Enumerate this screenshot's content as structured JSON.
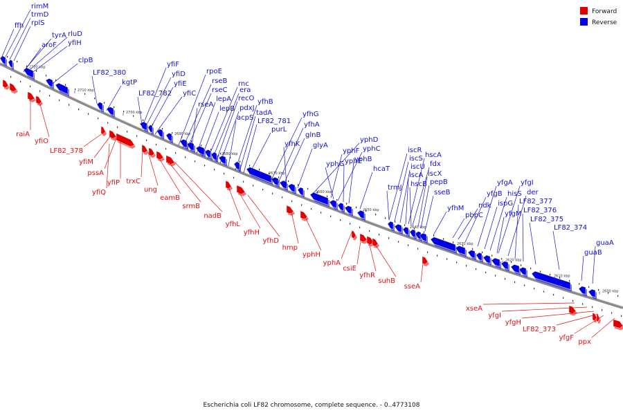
{
  "caption": "Escherichia coli LF82 chromosome, complete sequence. - 0..4773108",
  "legend": [
    {
      "label": "Forward",
      "color": "#e00000"
    },
    {
      "label": "Reverse",
      "color": "#0000e0"
    }
  ],
  "colors": {
    "forward": "#e00000",
    "reverse": "#0000e0",
    "backbone": "#999999"
  },
  "ticks": [
    "2720 kbp",
    "2710 kbp",
    "2700 kbp",
    "2690 kbp",
    "2680 kbp",
    "2670 kbp",
    "2660 kbp",
    "2650 kbp",
    "2640 kbp",
    "2630 kbp",
    "2620 kbp",
    "2610 kbp",
    "2600 kbp"
  ],
  "reverse_labels": [
    "rimM",
    "trmD",
    "rplS",
    "ffh",
    "tyrA",
    "rluD",
    "aroF",
    "yfiH",
    "clpB",
    "LF82_380",
    "kgtP",
    "yfiF",
    "yfiD",
    "yfiE",
    "LF82_782",
    "yfiC",
    "rpoE",
    "rseB",
    "rseC",
    "rseA",
    "lepA",
    "lepB",
    "rnc",
    "era",
    "recO",
    "pdxJ",
    "acpS",
    "yfhB",
    "tadA",
    "LF82_781",
    "purL",
    "yfhG",
    "yfhA",
    "glnB",
    "yfhK",
    "glyA",
    "yphD",
    "yphF",
    "yphC",
    "yphE",
    "yphB",
    "yphG",
    "hcaT",
    "iscR",
    "iscS",
    "hscA",
    "iscU",
    "fdx",
    "iscA",
    "iscX",
    "trmJ",
    "hscB",
    "pepB",
    "sseB",
    "yfhM",
    "yfgA",
    "yfgI",
    "yfgB",
    "hisS",
    "ispG",
    "der",
    "ndk",
    "pbpC",
    "LF82_377",
    "yfgM",
    "LF82_376",
    "LF82_375",
    "LF82_374",
    "guaA",
    "guaB"
  ],
  "forward_labels": [
    "raiA",
    "yfiO",
    "LF82_378",
    "yfiM",
    "pssA",
    "yfiP",
    "yfiQ",
    "trxC",
    "ung",
    "eamB",
    "srmB",
    "nadB",
    "yfhL",
    "yfhH",
    "yfhD",
    "hmp",
    "yphH",
    "yphA",
    "csiE",
    "yfhR",
    "suhB",
    "sseA",
    "xseA",
    "yfgI",
    "yfgH",
    "LF82_373",
    "yfgF",
    "ppx"
  ]
}
